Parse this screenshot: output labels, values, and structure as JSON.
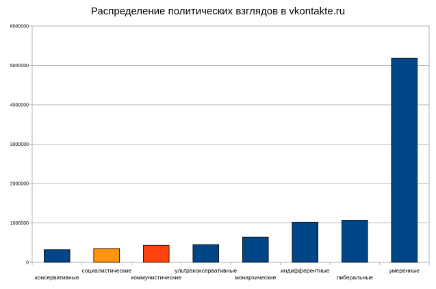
{
  "chart_data": {
    "type": "bar",
    "title": "Распределение политических взглядов в vkontakte.ru",
    "xlabel": "",
    "ylabel": "",
    "ylim": [
      0,
      6000000
    ],
    "ytick_values": [
      0,
      1000000,
      2000000,
      3000000,
      4000000,
      5000000,
      6000000
    ],
    "ytick_labels": [
      "0",
      "1000000",
      "2000000",
      "3000000",
      "4000000",
      "5000000",
      "6000000"
    ],
    "grid": true,
    "legend": "none",
    "categories": [
      "консервативные",
      "социалистические",
      "коммунистические",
      "ультраконсервативные",
      "монархические",
      "индифферентные",
      "либеральные",
      "умеренные"
    ],
    "values": [
      320000,
      350000,
      430000,
      450000,
      640000,
      1020000,
      1070000,
      5180000
    ],
    "bar_colors": [
      "#004586",
      "#ff950e",
      "#ff420e",
      "#004586",
      "#004586",
      "#004586",
      "#004586",
      "#004586"
    ]
  }
}
